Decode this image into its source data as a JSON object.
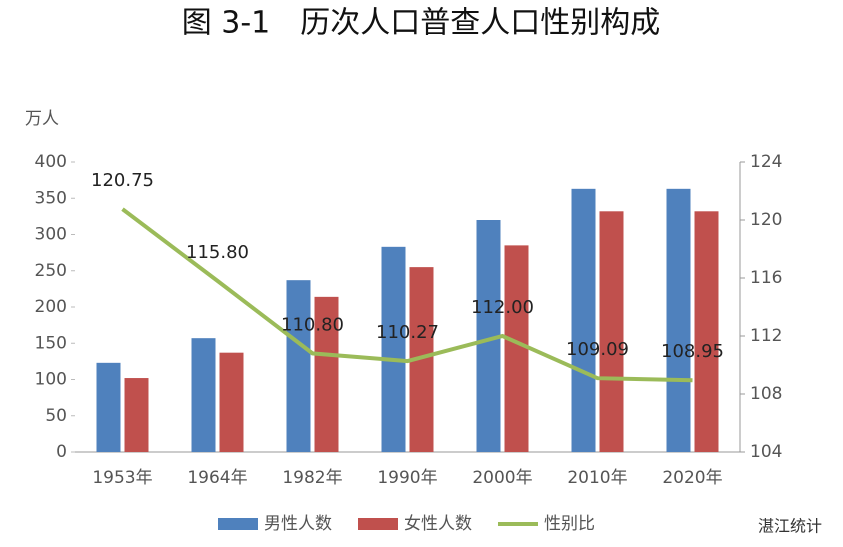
{
  "chart_data": {
    "type": "bar-line",
    "title": "图 3-1　历次人口普查人口性别构成",
    "y_label": "万人",
    "categories": [
      "1953年",
      "1964年",
      "1982年",
      "1990年",
      "2000年",
      "2010年",
      "2020年"
    ],
    "series": [
      {
        "name": "男性人数",
        "type": "bar",
        "color": "#4f81bd",
        "values": [
          123,
          157,
          237,
          283,
          320,
          363,
          363
        ]
      },
      {
        "name": "女性人数",
        "type": "bar",
        "color": "#c0504d",
        "values": [
          102,
          137,
          214,
          255,
          285,
          332,
          332
        ]
      },
      {
        "name": "性别比",
        "type": "line",
        "axis": "y2",
        "color": "#9bbb59",
        "values": [
          120.75,
          115.8,
          110.8,
          110.27,
          112.0,
          109.09,
          108.95
        ],
        "value_labels": [
          "120.75",
          "115.80",
          "110.80",
          "110.27",
          "112.00",
          "109.09",
          "108.95"
        ]
      }
    ],
    "ylim": [
      0,
      400
    ],
    "yticks": [
      0,
      50,
      100,
      150,
      200,
      250,
      300,
      350,
      400
    ],
    "y2lim": [
      104,
      124
    ],
    "y2ticks": [
      104,
      108,
      112,
      116,
      120,
      124
    ],
    "grid": false,
    "legend": "bottom",
    "watermark": "湛江统计"
  }
}
